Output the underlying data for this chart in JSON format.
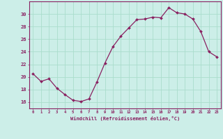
{
  "x": [
    0,
    1,
    2,
    3,
    4,
    5,
    6,
    7,
    8,
    9,
    10,
    11,
    12,
    13,
    14,
    15,
    16,
    17,
    18,
    19,
    20,
    21,
    22,
    23
  ],
  "y": [
    20.5,
    19.3,
    19.7,
    18.2,
    17.2,
    16.3,
    16.1,
    16.5,
    19.2,
    22.2,
    24.8,
    26.5,
    27.8,
    29.1,
    29.2,
    29.5,
    29.4,
    31.0,
    30.2,
    30.0,
    29.2,
    27.2,
    24.0,
    23.2
  ],
  "line_color": "#892060",
  "marker_color": "#892060",
  "bg_color": "#cceee8",
  "grid_color": "#aaddcc",
  "axis_color": "#892060",
  "ylabel_ticks": [
    16,
    18,
    20,
    22,
    24,
    26,
    28,
    30
  ],
  "xlabel": "Windchill (Refroidissement éolien,°C)",
  "ylim": [
    15.0,
    32.0
  ],
  "xlim": [
    -0.5,
    23.5
  ],
  "font_color": "#892060"
}
